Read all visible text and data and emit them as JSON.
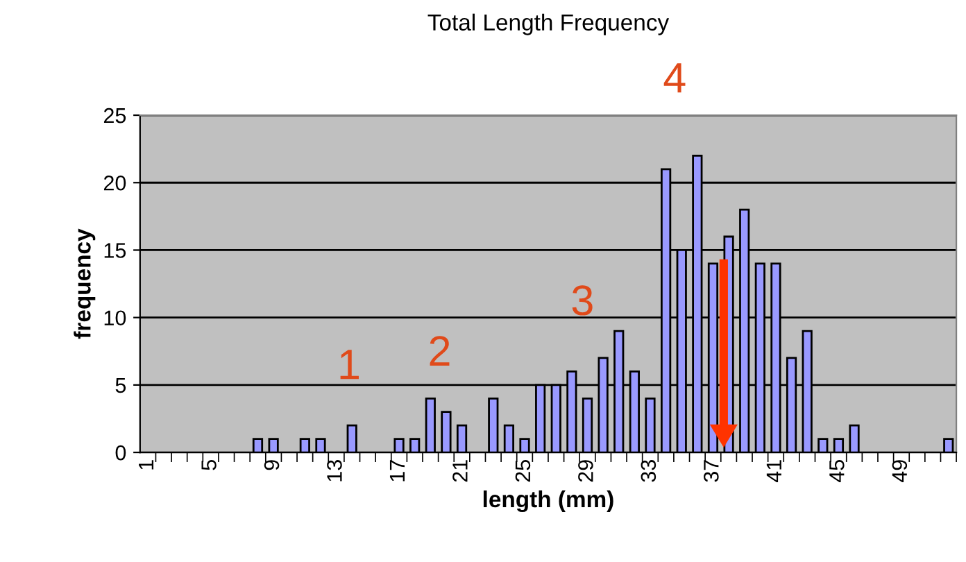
{
  "chart_data": {
    "type": "bar",
    "title": "Total Length Frequency",
    "xlabel": "length (mm)",
    "ylabel": "frequency",
    "categories": [
      "1",
      null,
      null,
      null,
      "5",
      null,
      null,
      null,
      "9",
      null,
      null,
      null,
      "13",
      null,
      null,
      null,
      "17",
      null,
      null,
      null,
      "21",
      null,
      null,
      null,
      "25",
      null,
      null,
      null,
      "29",
      null,
      null,
      null,
      "33",
      null,
      null,
      null,
      "37",
      null,
      null,
      null,
      "41",
      null,
      null,
      null,
      "45",
      null,
      null,
      null,
      "49",
      null,
      null,
      null
    ],
    "values": [
      0,
      0,
      0,
      0,
      0,
      0,
      0,
      1,
      1,
      0,
      1,
      1,
      0,
      2,
      0,
      0,
      1,
      1,
      4,
      3,
      2,
      0,
      4,
      2,
      1,
      5,
      5,
      6,
      4,
      7,
      9,
      6,
      4,
      21,
      15,
      22,
      14,
      16,
      18,
      14,
      14,
      7,
      9,
      1,
      1,
      2,
      0,
      0,
      0,
      0,
      0,
      1
    ],
    "color": "#9999ff",
    "ylim": [
      0,
      25
    ],
    "yticks": [
      0,
      5,
      10,
      15,
      20,
      25
    ],
    "grid": "y",
    "annotations": [
      "1",
      "2",
      "3",
      "4"
    ]
  }
}
